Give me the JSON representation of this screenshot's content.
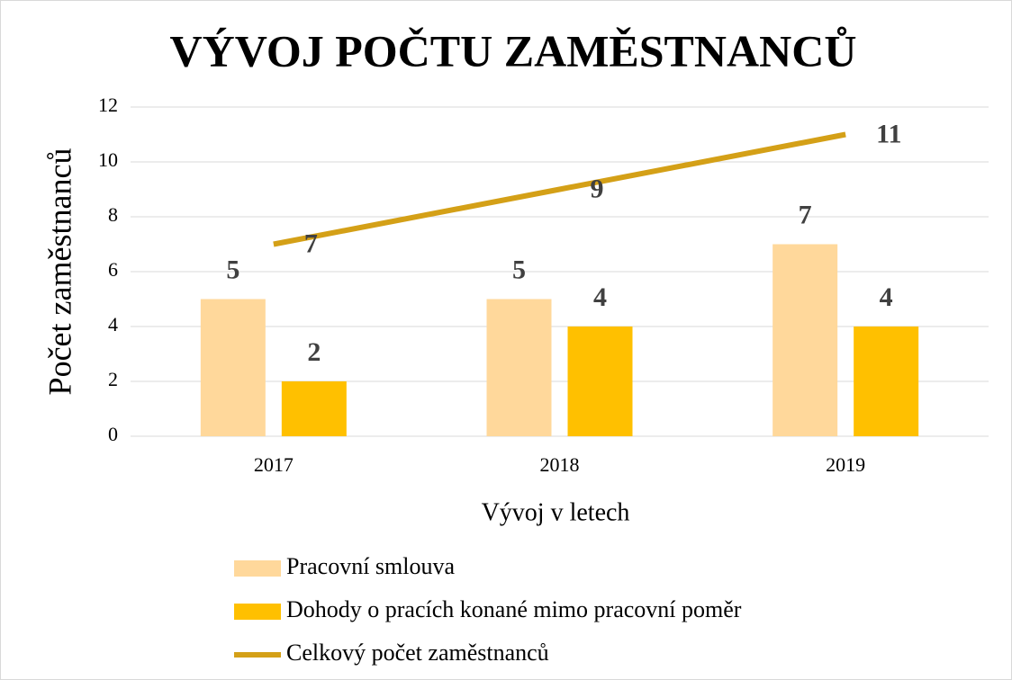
{
  "chart_data": {
    "type": "bar",
    "title": "VÝVOJ POČTU ZAMĚSTNANCŮ",
    "x_label": "Vývoj v letech",
    "y_label": "Počet zaměstnanců",
    "categories": [
      "2017",
      "2018",
      "2019"
    ],
    "series": [
      {
        "name": "Pracovní smlouva",
        "color": "#ffd89b",
        "values": [
          5,
          5,
          7
        ]
      },
      {
        "name": "Dohody o pracích konané mimo pracovní poměr",
        "color": "#ffc000",
        "values": [
          2,
          4,
          4
        ]
      },
      {
        "name": "Celkový počet zaměstnanců",
        "type": "line",
        "color": "#d4a017",
        "values": [
          7,
          9,
          11
        ]
      }
    ],
    "ylim": [
      0,
      12
    ],
    "yticks": [
      0,
      2,
      4,
      6,
      8,
      10,
      12
    ],
    "grid": true,
    "legend": "bottom"
  }
}
